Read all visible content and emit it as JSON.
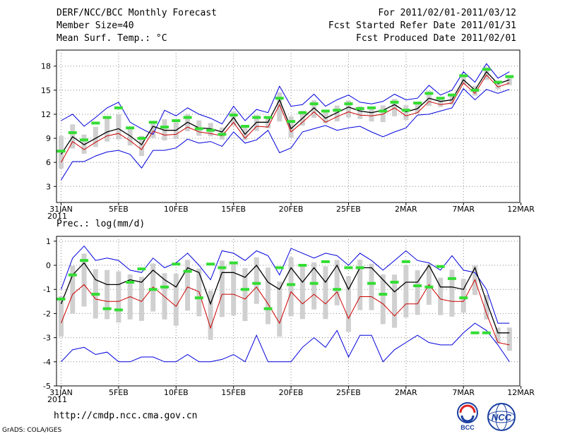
{
  "header": {
    "left": [
      "DERF/NCC/BCC Monthly Forecast",
      "Member Size=40",
      "Mean Surf. Temp.: °C"
    ],
    "right": [
      "For 2011/02/01-2011/03/12",
      "Fcst Started Refer Date 2011/01/31",
      "Fcst Produced Date 2011/02/01"
    ]
  },
  "footer": {
    "url": "http://cmdp.ncc.cma.gov.cn",
    "credit": "GrADS: COLA/IGES"
  },
  "logos": {
    "left": "BCC",
    "right": "NCC"
  },
  "colors": {
    "envelope": "#0000dd",
    "ensemble_mean": "#000000",
    "lower_line": "#cc0000",
    "observed": "#33dd33",
    "box": "#d0d0d0",
    "grid": "#888888"
  },
  "chart_data": [
    {
      "type": "line",
      "title": "Mean Surf. Temp.: °C",
      "x_tick_labels": [
        "31JAN",
        "5FEB",
        "10FEB",
        "15FEB",
        "20FEB",
        "25FEB",
        "2MAR",
        "7MAR",
        "12MAR"
      ],
      "x_year_label": "2011",
      "y_ticks": [
        "3",
        "6",
        "9",
        "12",
        "15",
        "18"
      ],
      "ylim": [
        1,
        20
      ],
      "days": [
        1,
        2,
        3,
        4,
        5,
        6,
        7,
        8,
        9,
        10,
        11,
        12,
        13,
        14,
        15,
        16,
        17,
        18,
        19,
        20,
        21,
        22,
        23,
        24,
        25,
        26,
        27,
        28,
        29,
        30,
        31,
        32,
        33,
        34,
        35,
        36,
        37,
        38,
        39,
        40
      ],
      "series": [
        {
          "name": "max",
          "values": [
            11.2,
            12.0,
            10.5,
            11.6,
            12.8,
            13.5,
            11.0,
            10.2,
            9.5,
            12.5,
            11.8,
            12.8,
            12.0,
            11.5,
            10.8,
            13.0,
            11.2,
            12.6,
            12.2,
            15.5,
            13.0,
            13.2,
            14.5,
            13.0,
            13.8,
            14.4,
            13.5,
            13.3,
            13.6,
            14.5,
            13.8,
            14.0,
            15.6,
            14.4,
            15.0,
            17.3,
            16.0,
            18.3,
            16.5,
            17.3
          ]
        },
        {
          "name": "mean",
          "values": [
            7.0,
            9.2,
            8.2,
            9.0,
            9.8,
            10.2,
            9.3,
            8.2,
            10.5,
            10.0,
            10.0,
            11.0,
            10.3,
            10.2,
            9.8,
            11.6,
            9.5,
            11.0,
            11.0,
            13.8,
            10.2,
            11.5,
            12.8,
            11.5,
            12.2,
            12.9,
            12.4,
            12.2,
            12.5,
            13.2,
            12.3,
            12.7,
            14.0,
            13.6,
            13.8,
            16.3,
            15.0,
            17.3,
            15.8,
            16.3
          ]
        },
        {
          "name": "low",
          "values": [
            6.0,
            8.6,
            7.6,
            8.5,
            9.3,
            9.6,
            8.7,
            7.6,
            9.9,
            9.4,
            9.5,
            10.4,
            9.8,
            9.6,
            9.3,
            11.0,
            9.0,
            10.5,
            10.4,
            13.2,
            9.8,
            11.0,
            12.3,
            11.0,
            11.7,
            12.3,
            11.9,
            11.8,
            12.0,
            12.8,
            11.8,
            12.2,
            13.6,
            13.2,
            13.4,
            15.9,
            14.6,
            16.9,
            15.4,
            15.9
          ]
        },
        {
          "name": "min",
          "values": [
            3.8,
            6.1,
            6.1,
            6.8,
            7.3,
            7.5,
            7.0,
            5.3,
            7.5,
            7.5,
            7.8,
            8.9,
            8.4,
            8.6,
            8.0,
            9.8,
            8.4,
            8.8,
            10.0,
            7.2,
            7.8,
            9.8,
            10.2,
            10.6,
            10.0,
            10.3,
            10.5,
            9.8,
            9.2,
            9.8,
            10.3,
            11.9,
            12.0,
            12.4,
            12.8,
            15.2,
            13.8,
            15.1,
            14.6,
            15.1
          ]
        },
        {
          "name": "observed",
          "values": [
            7.4,
            9.7,
            8.8,
            10.9,
            11.6,
            12.8,
            10.3,
            9.0,
            11.0,
            10.4,
            11.2,
            11.6,
            10.2,
            10.0,
            9.5,
            11.9,
            10.5,
            11.6,
            11.6,
            14.0,
            11.1,
            12.2,
            13.3,
            12.4,
            12.5,
            13.3,
            12.7,
            12.8,
            12.4,
            13.5,
            12.5,
            13.4,
            14.6,
            14.0,
            14.4,
            16.8,
            15.0,
            17.6,
            16.0,
            16.7
          ]
        }
      ]
    },
    {
      "type": "line",
      "title": "Prec.: log(mm/d)",
      "x_tick_labels": [
        "31JAN",
        "5FEB",
        "10FEB",
        "15FEB",
        "20FEB",
        "25FEB",
        "2MAR",
        "7MAR",
        "12MAR"
      ],
      "x_year_label": "2011",
      "y_ticks": [
        "-5",
        "-4",
        "-3",
        "-2",
        "-1",
        "0",
        "1"
      ],
      "ylim": [
        -5,
        1.2
      ],
      "days": [
        1,
        2,
        3,
        4,
        5,
        6,
        7,
        8,
        9,
        10,
        11,
        12,
        13,
        14,
        15,
        16,
        17,
        18,
        19,
        20,
        21,
        22,
        23,
        24,
        25,
        26,
        27,
        28,
        29,
        30,
        31,
        32,
        33,
        34,
        35,
        36,
        37,
        38,
        39,
        40
      ],
      "series": [
        {
          "name": "max",
          "values": [
            -1.0,
            0.3,
            0.8,
            0.2,
            0.3,
            0.2,
            -0.2,
            -0.3,
            0.3,
            -0.1,
            0.1,
            0.5,
            0.0,
            -0.6,
            0.6,
            0.5,
            0.2,
            0.6,
            0.4,
            -0.4,
            0.7,
            0.5,
            0.3,
            0.5,
            0.4,
            0.0,
            0.5,
            0.2,
            -0.2,
            0.2,
            0.6,
            0.2,
            0.1,
            -0.2,
            0.4,
            -0.2,
            -0.3,
            -1.0,
            -2.4,
            -2.4
          ]
        },
        {
          "name": "mean",
          "values": [
            -1.6,
            -0.4,
            0.1,
            -0.6,
            -0.8,
            -0.8,
            -0.6,
            -0.7,
            -0.2,
            -0.6,
            -0.9,
            -0.1,
            -0.3,
            -1.6,
            -0.3,
            -0.3,
            -0.5,
            0.0,
            -0.7,
            -1.0,
            -0.1,
            -0.7,
            -0.1,
            -0.7,
            0.0,
            -1.0,
            -0.1,
            -0.1,
            -0.6,
            -1.1,
            -0.7,
            -0.7,
            0.0,
            -0.9,
            -0.9,
            -1.0,
            -0.1,
            -1.5,
            -2.8,
            -2.8
          ]
        },
        {
          "name": "low",
          "values": [
            -2.4,
            -1.2,
            -0.8,
            -1.4,
            -1.5,
            -1.5,
            -1.3,
            -1.5,
            -0.9,
            -1.3,
            -1.7,
            -0.9,
            -1.1,
            -2.6,
            -1.2,
            -1.2,
            -1.4,
            -0.9,
            -1.6,
            -2.4,
            -1.1,
            -1.6,
            -1.2,
            -1.6,
            -1.1,
            -2.2,
            -1.3,
            -1.3,
            -1.6,
            -2.1,
            -1.6,
            -1.6,
            -0.8,
            -1.4,
            -1.5,
            -1.5,
            -0.6,
            -2.0,
            -3.2,
            -3.3
          ]
        },
        {
          "name": "min",
          "values": [
            -4.0,
            -3.5,
            -3.4,
            -3.7,
            -3.6,
            -4.0,
            -4.0,
            -3.8,
            -3.8,
            -4.0,
            -4.0,
            -3.7,
            -4.0,
            -4.0,
            -3.9,
            -3.7,
            -4.0,
            -2.9,
            -4.0,
            -4.0,
            -4.0,
            -3.4,
            -3.0,
            -3.4,
            -2.7,
            -3.8,
            -2.9,
            -2.9,
            -4.0,
            -3.5,
            -3.2,
            -2.9,
            -3.2,
            -3.3,
            -3.3,
            -2.8,
            -2.4,
            -2.7,
            -3.3,
            -4.0
          ]
        },
        {
          "name": "observed",
          "values": [
            -1.4,
            -0.4,
            0.2,
            -1.2,
            -1.8,
            -1.85,
            -0.7,
            -0.15,
            -1.0,
            -0.9,
            0.05,
            -0.25,
            -1.35,
            0.05,
            -0.1,
            0.1,
            -1.0,
            -0.75,
            -1.8,
            -0.1,
            -0.8,
            0.0,
            -0.75,
            0.15,
            -1.0,
            -0.1,
            -0.1,
            -0.75,
            -1.2,
            -0.7,
            0.15,
            -0.85,
            -0.9,
            -0.05,
            -0.55,
            -1.35,
            -2.8,
            -2.8,
            null,
            null
          ]
        }
      ]
    }
  ]
}
